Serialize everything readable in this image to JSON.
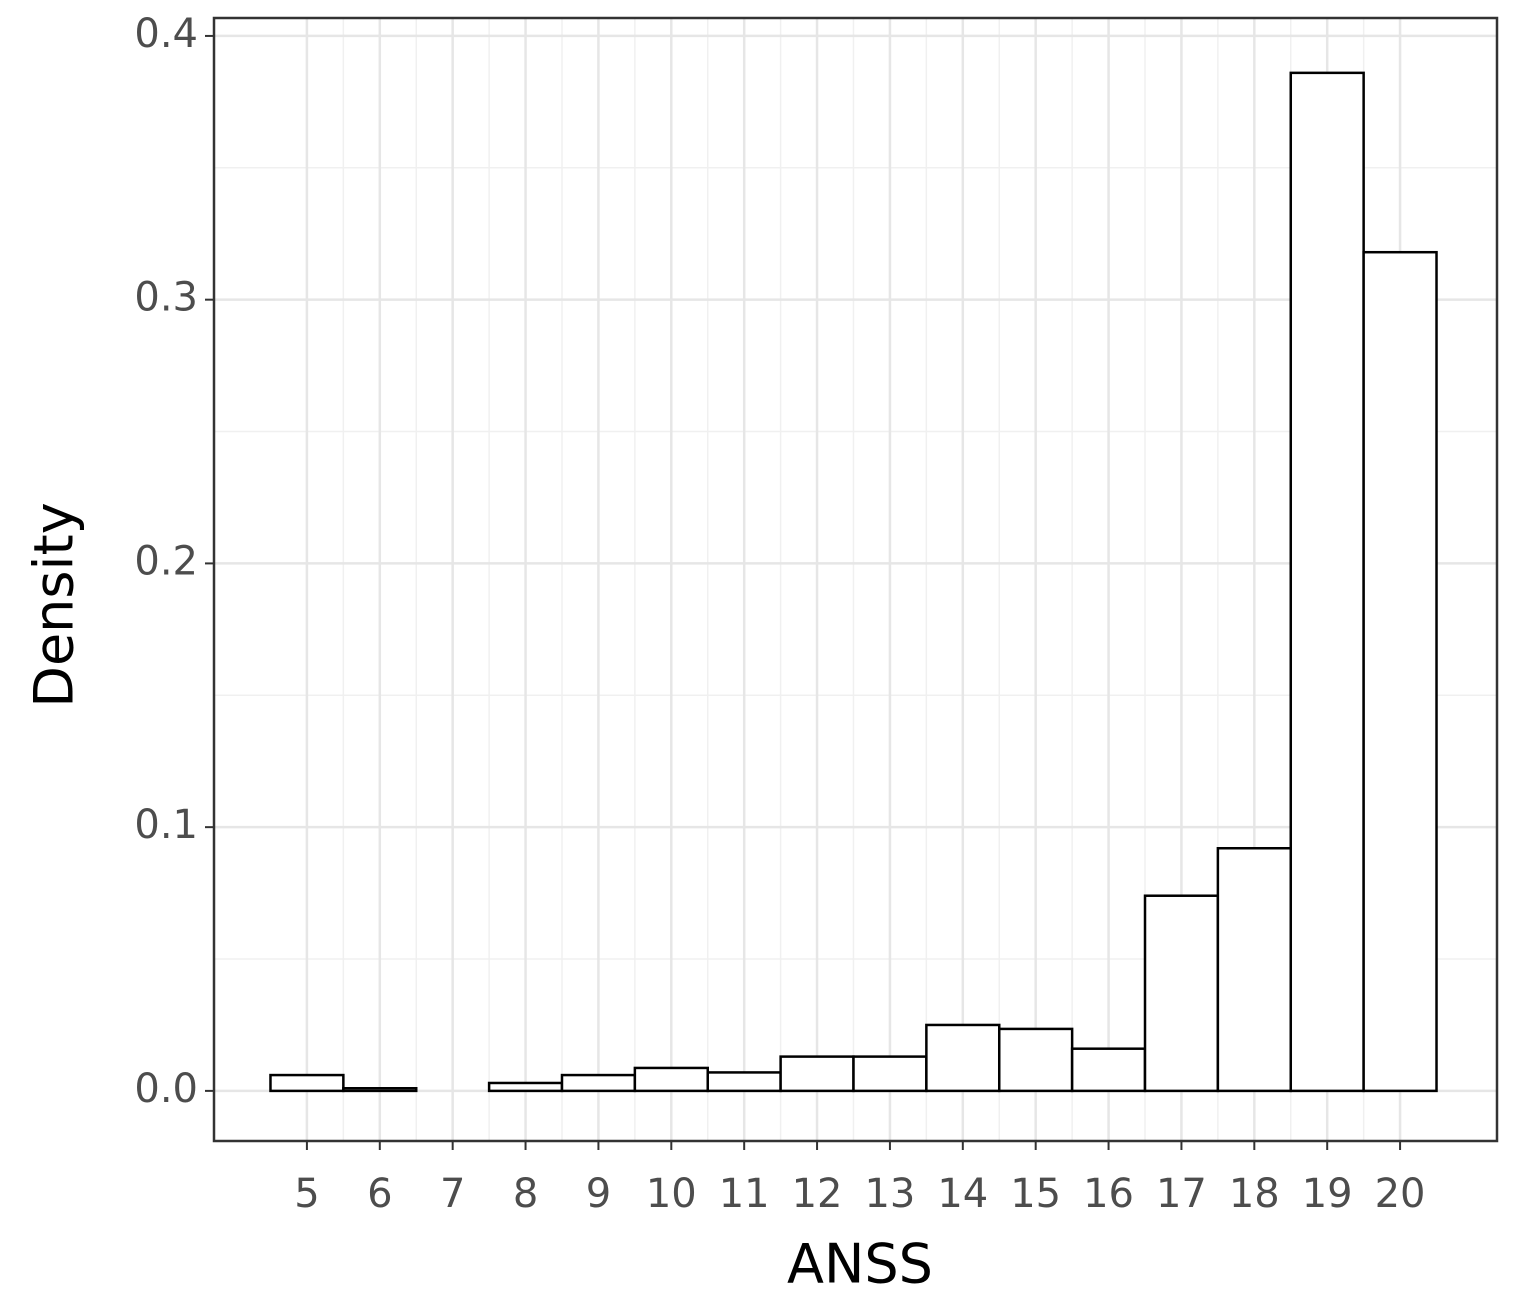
{
  "chart_data": {
    "type": "histogram",
    "x_label": "ANSS",
    "y_label": "Density",
    "bins": [
      4.5,
      5.5,
      6.5,
      7.5,
      8.5,
      9.5,
      10.5,
      11.5,
      12.5,
      13.5,
      14.5,
      15.5,
      16.5,
      17.5,
      18.5,
      19.5,
      20.5
    ],
    "counts": [
      0.006,
      0.001,
      0,
      0.003,
      0.006,
      0.0087,
      0.007,
      0.013,
      0.013,
      0.025,
      0.0235,
      0.016,
      0.074,
      0.092,
      0.386,
      0.318
    ],
    "color": "#ffffff",
    "edge_color": "#000000",
    "xlim": [
      3.725,
      21.33
    ],
    "ylim": [
      -0.019,
      0.4068
    ],
    "xticks": [
      5,
      6,
      7,
      8,
      9,
      10,
      11,
      12,
      13,
      14,
      15,
      16,
      17,
      18,
      19,
      20
    ],
    "yticks": [
      {
        "value": 0,
        "label": "0.0"
      },
      0.1,
      0.2,
      0.3,
      0.4
    ],
    "grid": true
  }
}
